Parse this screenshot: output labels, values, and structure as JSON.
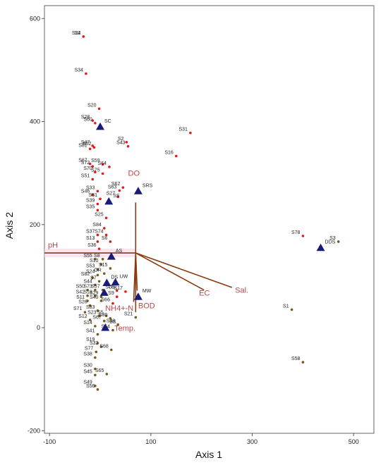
{
  "chart_data": {
    "type": "scatter",
    "title": "",
    "xlabel": "Axis 1",
    "ylabel": "Axis 2",
    "xlim": [
      -110,
      540
    ],
    "ylim": [
      -205,
      625
    ],
    "xticks": [
      -100,
      100,
      300,
      500
    ],
    "yticks": [
      -200,
      0,
      200,
      400,
      600
    ],
    "grid": false,
    "colors": {
      "site_red": "#e31a1c",
      "site_dark": "#7a5a1a",
      "triangle": "#1a1a78",
      "vector": "#8b3a0f",
      "env_label": "#b54a4a"
    },
    "env_origin": [
      70,
      145
    ],
    "env_vectors": [
      {
        "name": "pH",
        "x": -110,
        "y": 145,
        "lx": -103,
        "ly": 155
      },
      {
        "name": "DO",
        "x": 70,
        "y": 243,
        "lx": 55,
        "ly": 295
      },
      {
        "name": "EC",
        "x": 205,
        "y": 73,
        "lx": 195,
        "ly": 62
      },
      {
        "name": "Sal.",
        "x": 260,
        "y": 78,
        "lx": 266,
        "ly": 68
      },
      {
        "name": "BOD",
        "x": 73,
        "y": 72,
        "lx": 75,
        "ly": 38
      },
      {
        "name": "NH4+-N",
        "x": 66,
        "y": 50,
        "lx": 10,
        "ly": 33
      },
      {
        "name": "Temp.",
        "x": 70,
        "y": 30,
        "lx": 28,
        "ly": -6
      }
    ],
    "triangles": [
      {
        "name": "SC",
        "x": 0,
        "y": 390
      },
      {
        "name": "SRS",
        "x": 75,
        "y": 265
      },
      {
        "name": "SS",
        "x": 17,
        "y": 245
      },
      {
        "name": "AS",
        "x": 22,
        "y": 138
      },
      {
        "name": "UW",
        "x": 30,
        "y": 88
      },
      {
        "name": "DS",
        "x": 13,
        "y": 87
      },
      {
        "name": "OS",
        "x": 8,
        "y": 68
      },
      {
        "name": "MW",
        "x": 75,
        "y": 60
      },
      {
        "name": "BS",
        "x": 10,
        "y": 0
      },
      {
        "name": "DDS",
        "x": 435,
        "y": 155
      }
    ],
    "sites": [
      {
        "name": "S4",
        "x": -33,
        "y": 565,
        "c": "r"
      },
      {
        "name": "S22",
        "x": -33,
        "y": 565,
        "c": "r"
      },
      {
        "name": "S34",
        "x": -28,
        "y": 493,
        "c": "r"
      },
      {
        "name": "S20",
        "x": -2,
        "y": 425,
        "c": "r"
      },
      {
        "name": "S28",
        "x": -15,
        "y": 402,
        "c": "r"
      },
      {
        "name": "S60",
        "x": -10,
        "y": 397,
        "c": "r"
      },
      {
        "name": "S31",
        "x": 178,
        "y": 378,
        "c": "r"
      },
      {
        "name": "S47",
        "x": -15,
        "y": 353,
        "c": "r"
      },
      {
        "name": "S52",
        "x": -12,
        "y": 350,
        "c": "r"
      },
      {
        "name": "S81",
        "x": -20,
        "y": 347,
        "c": "r"
      },
      {
        "name": "S2",
        "x": 52,
        "y": 360,
        "c": "r"
      },
      {
        "name": "S43",
        "x": 55,
        "y": 352,
        "c": "r"
      },
      {
        "name": "S16",
        "x": 150,
        "y": 333,
        "c": "r"
      },
      {
        "name": "S67",
        "x": -20,
        "y": 318,
        "c": "r"
      },
      {
        "name": "S59",
        "x": 5,
        "y": 317,
        "c": "r"
      },
      {
        "name": "S64",
        "x": 18,
        "y": 312,
        "c": "r"
      },
      {
        "name": "S72",
        "x": -15,
        "y": 313,
        "c": "r"
      },
      {
        "name": "S70",
        "x": -10,
        "y": 302,
        "c": "r"
      },
      {
        "name": "S75",
        "x": 5,
        "y": 299,
        "c": "r"
      },
      {
        "name": "S51",
        "x": -15,
        "y": 288,
        "c": "r"
      },
      {
        "name": "S62",
        "x": 45,
        "y": 272,
        "c": "r"
      },
      {
        "name": "S63",
        "x": 38,
        "y": 266,
        "c": "r"
      },
      {
        "name": "S33",
        "x": -5,
        "y": 265,
        "c": "r"
      },
      {
        "name": "S46",
        "x": -15,
        "y": 258,
        "c": "r"
      },
      {
        "name": "S27",
        "x": 35,
        "y": 254,
        "c": "r"
      },
      {
        "name": "S61",
        "x": 0,
        "y": 250,
        "c": "r"
      },
      {
        "name": "S39",
        "x": -5,
        "y": 240,
        "c": "r"
      },
      {
        "name": "S35",
        "x": -5,
        "y": 228,
        "c": "r"
      },
      {
        "name": "S25",
        "x": 12,
        "y": 213,
        "c": "r"
      },
      {
        "name": "S84",
        "x": 8,
        "y": 193,
        "c": "r"
      },
      {
        "name": "S37",
        "x": -5,
        "y": 180,
        "c": "r"
      },
      {
        "name": "S74",
        "x": 12,
        "y": 180,
        "c": "r"
      },
      {
        "name": "S13",
        "x": -5,
        "y": 167,
        "c": "r"
      },
      {
        "name": "S6",
        "x": 20,
        "y": 167,
        "c": "r"
      },
      {
        "name": "S36",
        "x": -2,
        "y": 153,
        "c": "r"
      },
      {
        "name": "S78",
        "x": 400,
        "y": 178,
        "c": "r"
      },
      {
        "name": "S3",
        "x": 470,
        "y": 167,
        "c": "d"
      },
      {
        "name": "S55",
        "x": -10,
        "y": 133,
        "c": "d"
      },
      {
        "name": "S8",
        "x": 5,
        "y": 133,
        "c": "d"
      },
      {
        "name": "S10",
        "x": 2,
        "y": 123,
        "c": "d"
      },
      {
        "name": "S15",
        "x": 20,
        "y": 115,
        "c": "d"
      },
      {
        "name": "S53",
        "x": -5,
        "y": 113,
        "c": "d"
      },
      {
        "name": "OR",
        "x": 8,
        "y": 105,
        "c": "d"
      },
      {
        "name": "S24",
        "x": -5,
        "y": 102,
        "c": "d"
      },
      {
        "name": "S82",
        "x": -15,
        "y": 97,
        "c": "d"
      },
      {
        "name": "S7",
        "x": -2,
        "y": 90,
        "c": "d"
      },
      {
        "name": "S44",
        "x": -10,
        "y": 83,
        "c": "d"
      },
      {
        "name": "S50",
        "x": -25,
        "y": 73,
        "c": "d"
      },
      {
        "name": "S73",
        "x": -10,
        "y": 73,
        "c": "d"
      },
      {
        "name": "S57",
        "x": 5,
        "y": 73,
        "c": "d"
      },
      {
        "name": "S76",
        "x": 33,
        "y": 72,
        "c": "r"
      },
      {
        "name": "S17",
        "x": 50,
        "y": 70,
        "c": "r"
      },
      {
        "name": "S42",
        "x": -25,
        "y": 62,
        "c": "d"
      },
      {
        "name": "S18",
        "x": -10,
        "y": 62,
        "c": "d"
      },
      {
        "name": "S29",
        "x": 2,
        "y": 60,
        "c": "d"
      },
      {
        "name": "S9",
        "x": 33,
        "y": 60,
        "c": "r"
      },
      {
        "name": "S11",
        "x": -25,
        "y": 52,
        "c": "d"
      },
      {
        "name": "S40",
        "x": 2,
        "y": 52,
        "c": "d"
      },
      {
        "name": "S66",
        "x": 25,
        "y": 47,
        "c": "r"
      },
      {
        "name": "S26",
        "x": -20,
        "y": 43,
        "c": "d"
      },
      {
        "name": "S71",
        "x": -30,
        "y": 30,
        "c": "d"
      },
      {
        "name": "S83",
        "x": -5,
        "y": 33,
        "c": "d"
      },
      {
        "name": "S23",
        "x": -2,
        "y": 23,
        "c": "d"
      },
      {
        "name": "S5",
        "x": 12,
        "y": 23,
        "c": "d"
      },
      {
        "name": "S21",
        "x": 70,
        "y": 20,
        "c": "d"
      },
      {
        "name": "S80",
        "x": 20,
        "y": 18,
        "c": "d"
      },
      {
        "name": "S12",
        "x": -20,
        "y": 15,
        "c": "d"
      },
      {
        "name": "S67b",
        "label": "S67",
        "x": 8,
        "y": 13,
        "c": "d"
      },
      {
        "name": "S48",
        "x": 35,
        "y": 6,
        "c": "d"
      },
      {
        "name": "S14",
        "x": -10,
        "y": 3,
        "c": "d"
      },
      {
        "name": "S54",
        "x": 25,
        "y": -5,
        "c": "d"
      },
      {
        "name": "S41",
        "x": -5,
        "y": -13,
        "c": "d"
      },
      {
        "name": "S19",
        "x": -5,
        "y": -30,
        "c": "d"
      },
      {
        "name": "S32",
        "x": 2,
        "y": -37,
        "c": "d"
      },
      {
        "name": "S68",
        "x": 22,
        "y": -43,
        "c": "d"
      },
      {
        "name": "S77",
        "x": -8,
        "y": -47,
        "c": "d"
      },
      {
        "name": "S38",
        "x": -10,
        "y": -58,
        "c": "d"
      },
      {
        "name": "S30",
        "x": -10,
        "y": -80,
        "c": "d"
      },
      {
        "name": "S65",
        "x": 13,
        "y": -90,
        "c": "d"
      },
      {
        "name": "S45",
        "x": -10,
        "y": -92,
        "c": "d"
      },
      {
        "name": "S49",
        "x": -10,
        "y": -113,
        "c": "d"
      },
      {
        "name": "S56",
        "x": -5,
        "y": -120,
        "c": "d"
      },
      {
        "name": "S1",
        "x": 378,
        "y": 35,
        "c": "d"
      },
      {
        "name": "S58",
        "x": 400,
        "y": -67,
        "c": "d"
      }
    ]
  }
}
